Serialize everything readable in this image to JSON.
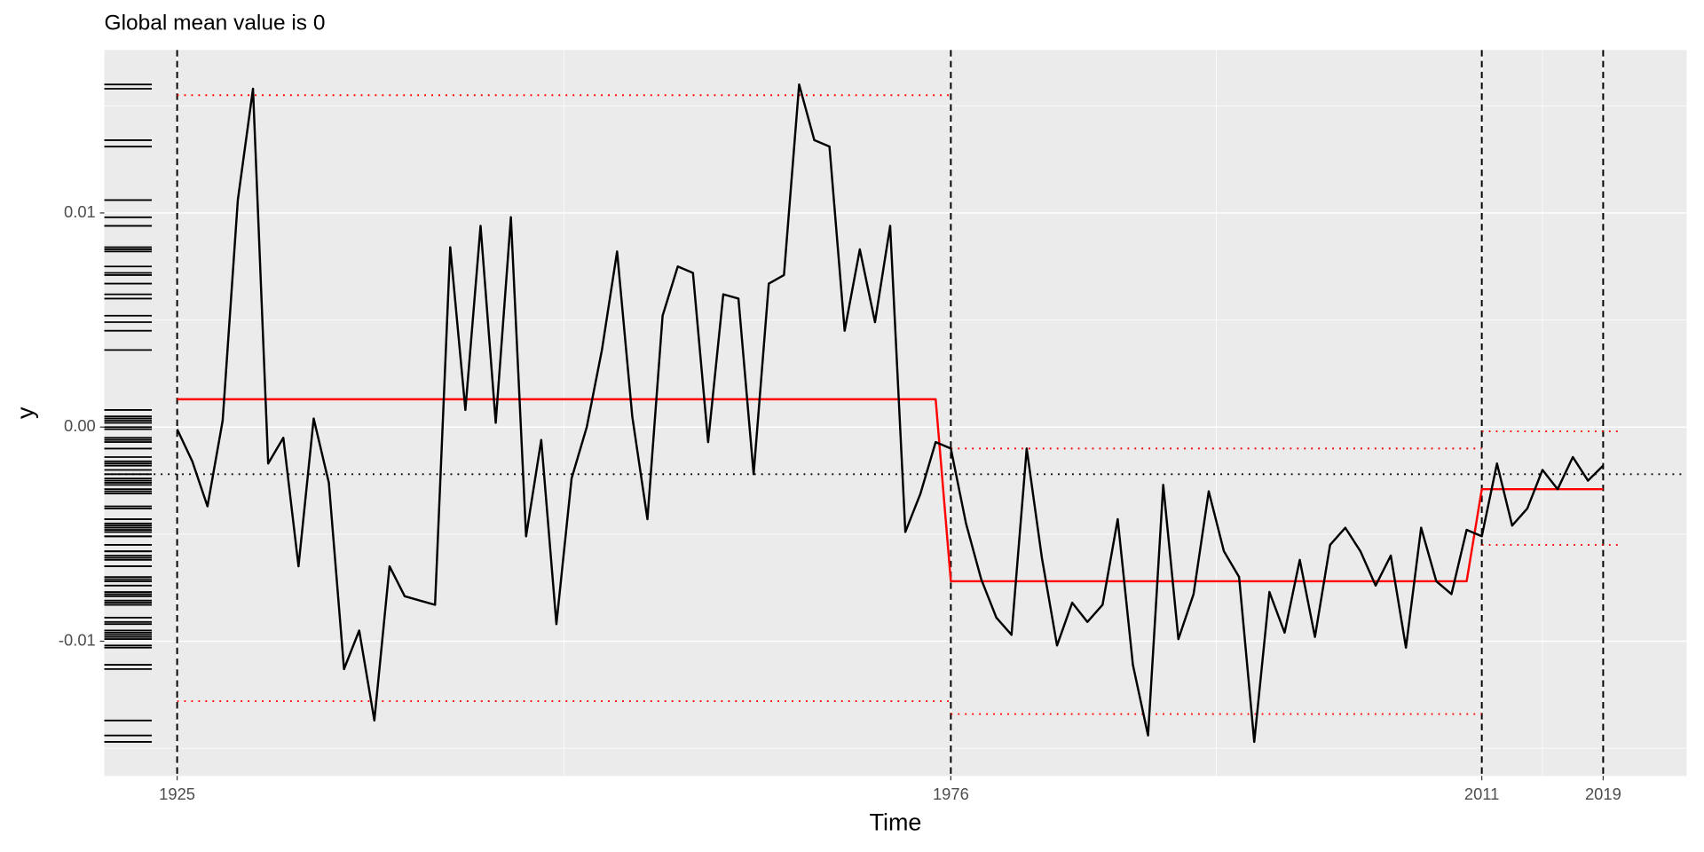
{
  "chart_data": {
    "type": "line",
    "title": "Global mean value is 0",
    "x_label": "Time",
    "y_label": "y",
    "x": [
      1925,
      1926,
      1927,
      1928,
      1929,
      1930,
      1931,
      1932,
      1933,
      1934,
      1935,
      1936,
      1937,
      1938,
      1939,
      1940,
      1941,
      1942,
      1943,
      1944,
      1945,
      1946,
      1947,
      1948,
      1949,
      1950,
      1951,
      1952,
      1953,
      1954,
      1955,
      1956,
      1957,
      1958,
      1959,
      1960,
      1961,
      1962,
      1963,
      1964,
      1965,
      1966,
      1967,
      1968,
      1969,
      1970,
      1971,
      1972,
      1973,
      1974,
      1975,
      1976,
      1977,
      1978,
      1979,
      1980,
      1981,
      1982,
      1983,
      1984,
      1985,
      1986,
      1987,
      1988,
      1989,
      1990,
      1991,
      1992,
      1993,
      1994,
      1995,
      1996,
      1997,
      1998,
      1999,
      2000,
      2001,
      2002,
      2003,
      2004,
      2005,
      2006,
      2007,
      2008,
      2009,
      2010,
      2011,
      2012,
      2013,
      2014,
      2015,
      2016,
      2017,
      2018,
      2019
    ],
    "values": [
      -0.0001,
      -0.0016,
      -0.0037,
      0.0003,
      0.0106,
      0.0158,
      -0.0017,
      -0.0005,
      -0.0065,
      0.0004,
      -0.0026,
      -0.0113,
      -0.0095,
      -0.0137,
      -0.0065,
      -0.0079,
      -0.0081,
      -0.0083,
      0.0084,
      0.0008,
      0.0094,
      0.0002,
      0.0098,
      -0.0051,
      -0.0006,
      -0.0092,
      -0.0024,
      0.0,
      0.0036,
      0.0082,
      0.0005,
      -0.0043,
      0.0052,
      0.0075,
      0.0072,
      -0.0007,
      0.0062,
      0.006,
      -0.0022,
      0.0067,
      0.0071,
      0.016,
      0.0134,
      0.0131,
      0.0045,
      0.0083,
      0.0049,
      0.0094,
      -0.0049,
      -0.0031,
      -0.0007,
      -0.001,
      -0.0045,
      -0.0071,
      -0.0089,
      -0.0097,
      -0.001,
      -0.0061,
      -0.0102,
      -0.0082,
      -0.0091,
      -0.0083,
      -0.0043,
      -0.0111,
      -0.0144,
      -0.0027,
      -0.0099,
      -0.0078,
      -0.003,
      -0.0058,
      -0.007,
      -0.0147,
      -0.0077,
      -0.0096,
      -0.0062,
      -0.0098,
      -0.0055,
      -0.0047,
      -0.0058,
      -0.0074,
      -0.006,
      -0.0103,
      -0.0047,
      -0.0072,
      -0.0078,
      -0.0048,
      -0.0051,
      -0.0017,
      -0.0046,
      -0.0038,
      -0.002,
      -0.0029,
      -0.0014,
      -0.0025,
      -0.0018
    ],
    "color": "#000000",
    "segment_means": {
      "x": [
        1925,
        1975,
        1976,
        2010,
        2011,
        2019
      ],
      "values": [
        0.0013,
        0.0013,
        -0.0072,
        -0.0072,
        -0.0029,
        -0.0029
      ],
      "color": "#ff0000"
    },
    "intervals": [
      {
        "x0": 1925,
        "x1": 1976,
        "lower": -0.0128,
        "upper": 0.0155
      },
      {
        "x0": 1976,
        "x1": 2011,
        "lower": -0.0134,
        "upper": -0.001
      },
      {
        "x0": 2011,
        "x1": 2020,
        "lower": -0.0055,
        "upper": -0.0002
      }
    ],
    "interval_color": "#ff0000",
    "global_mean": -0.0022,
    "changepoints": [
      1925,
      1976,
      2011,
      2019
    ],
    "xlim": [
      1920.2,
      2024.5
    ],
    "ylim": [
      -0.01629,
      0.01761
    ],
    "xticks": [
      1925,
      1976,
      2011,
      2019
    ],
    "yticks": [
      -0.01,
      {
        "value": 0,
        "label": "0.00"
      },
      0.01
    ],
    "x_minor_ticks": [
      1950.5,
      1993.5,
      2015
    ],
    "y_minor_ticks": [
      -0.015,
      -0.005,
      0.005,
      0.015
    ],
    "grid": true,
    "rug": true
  }
}
